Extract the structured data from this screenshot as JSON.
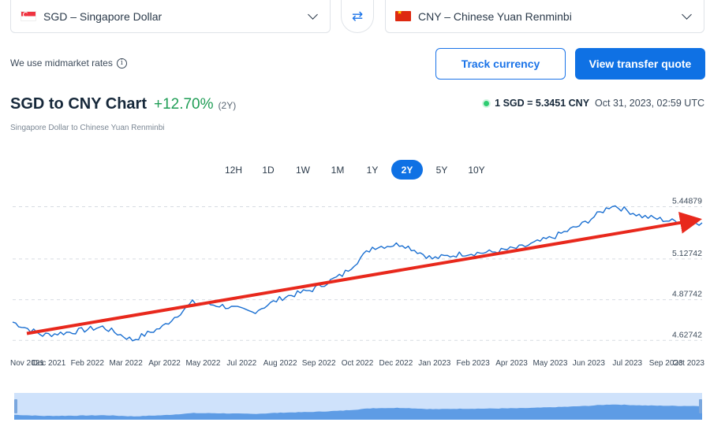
{
  "from_currency": {
    "label": "SGD – Singapore Dollar",
    "flag": "sg-flag"
  },
  "to_currency": {
    "label": "CNY – Chinese Yuan Renminbi",
    "flag": "cn-flag"
  },
  "swap_icon": "⇄",
  "rates_note": "We use midmarket rates",
  "info_icon": "i",
  "buttons": {
    "track": "Track currency",
    "quote": "View transfer quote"
  },
  "chart_header": {
    "title": "SGD to CNY Chart",
    "change": "+12.70%",
    "period": "(2Y)",
    "subtitle": "Singapore Dollar to Chinese Yuan Renminbi"
  },
  "live_rate": {
    "rate": "1 SGD = 5.3451 CNY",
    "timestamp": "Oct 31, 2023, 02:59 UTC"
  },
  "ranges": [
    "12H",
    "1D",
    "1W",
    "1M",
    "1Y",
    "2Y",
    "5Y",
    "10Y"
  ],
  "active_range": "2Y",
  "colors": {
    "accent": "#0f71e4",
    "line": "#1a6fd1",
    "positive": "#1f9d55",
    "trend_arrow": "#e8281c"
  },
  "chart_data": {
    "type": "line",
    "series": [
      {
        "x": [
          "Nov 2021",
          "Dec 2021",
          "Jan 2022",
          "Feb 2022",
          "Mar 2022",
          "Apr 2022",
          "May 2022",
          "Jun 2022",
          "Jul 2022",
          "Aug 2022",
          "Sep 2022",
          "Oct 2022",
          "Nov 2022",
          "Dec 2022",
          "Jan 2023",
          "Feb 2023",
          "Mar 2023",
          "Apr 2023",
          "May 2023",
          "Jun 2023",
          "Jul 2023",
          "Aug 2023",
          "Sep 2023",
          "Oct 2023"
        ],
        "values": [
          4.74,
          4.66,
          4.68,
          4.71,
          4.63,
          4.71,
          4.86,
          4.84,
          4.8,
          4.89,
          4.94,
          5.03,
          5.2,
          5.22,
          5.13,
          5.16,
          5.17,
          5.2,
          5.26,
          5.34,
          5.46,
          5.39,
          5.36,
          5.35
        ]
      }
    ],
    "x_tick_labels": [
      "Nov 2021",
      "Dec 2021",
      "Feb 2022",
      "Mar 2022",
      "Apr 2022",
      "May 2022",
      "Jul 2022",
      "Aug 2022",
      "Sep 2022",
      "Oct 2022",
      "Dec 2022",
      "Jan 2023",
      "Feb 2023",
      "Apr 2023",
      "May 2023",
      "Jun 2023",
      "Jul 2023",
      "Sep 2023",
      "Oct 2023"
    ],
    "y_ticks": [
      4.62742,
      4.87742,
      5.12742,
      5.44879
    ],
    "y_tick_labels": [
      "4.62742",
      "4.87742",
      "5.12742",
      "5.44879"
    ],
    "ylim": [
      4.59,
      5.49
    ],
    "grid": "horizontal dashed",
    "annotation": {
      "type": "trend arrow",
      "from": [
        "Nov 2021",
        4.67
      ],
      "to": [
        "Oct 2023",
        5.37
      ]
    }
  }
}
